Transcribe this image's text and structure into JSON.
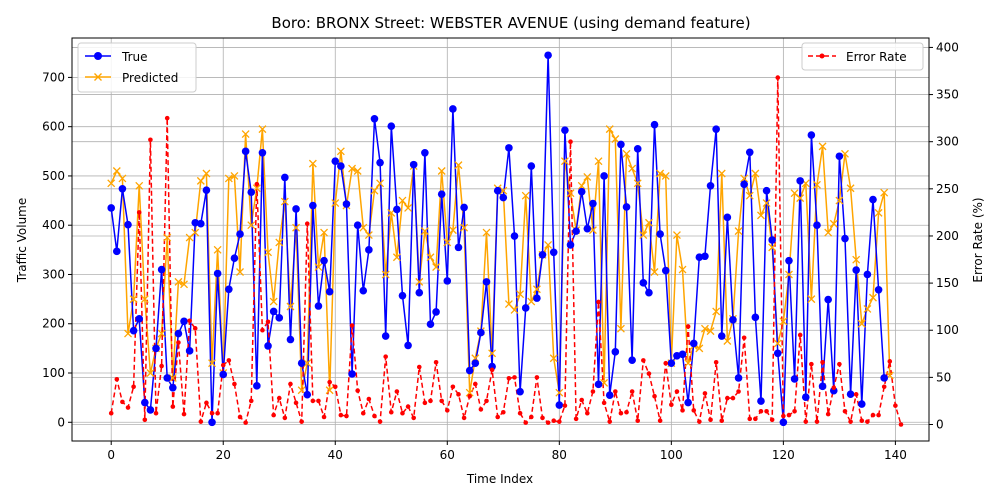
{
  "chart_data": {
    "type": "line",
    "title": "Boro: BRONX Street: WEBSTER AVENUE (using demand feature)",
    "xlabel": "Time Index",
    "ylabel": "Traffic Volume",
    "y2label": "Error Rate (%)",
    "xlim": [
      -7,
      146
    ],
    "ylim": [
      -38,
      780
    ],
    "y2lim": [
      -17.5,
      410
    ],
    "xticks": [
      0,
      20,
      40,
      60,
      80,
      100,
      120,
      140
    ],
    "yticks": [
      0,
      100,
      200,
      300,
      400,
      500,
      600,
      700
    ],
    "y2ticks": [
      0,
      50,
      100,
      150,
      200,
      250,
      300,
      350,
      400
    ],
    "grid": true,
    "legend_left": {
      "position": "top-left",
      "entries": [
        "True",
        "Predicted"
      ]
    },
    "legend_right": {
      "position": "top-right",
      "entries": [
        "Error Rate"
      ]
    },
    "colors": {
      "true": "#0000ff",
      "predicted": "#ffa500",
      "error": "#ff0000"
    },
    "series": [
      {
        "name": "True",
        "axis": "left",
        "marker": "circle",
        "line": "solid",
        "values": [
          435,
          347,
          474,
          401,
          186,
          210,
          40,
          25,
          150,
          310,
          90,
          70,
          180,
          205,
          145,
          405,
          403,
          471,
          0,
          302,
          97,
          270,
          333,
          382,
          550,
          467,
          74,
          547,
          155,
          225,
          212,
          497,
          168,
          433,
          120,
          56,
          440,
          236,
          328,
          265,
          530,
          520,
          443,
          98,
          400,
          267,
          350,
          616,
          527,
          175,
          601,
          432,
          257,
          156,
          523,
          263,
          547,
          199,
          224,
          463,
          287,
          636,
          355,
          436,
          105,
          120,
          182,
          285,
          113,
          470,
          456,
          557,
          378,
          62,
          232,
          520,
          252,
          340,
          745,
          345,
          35,
          593,
          360,
          388,
          468,
          393,
          444,
          77,
          500,
          55,
          143,
          564,
          437,
          126,
          555,
          283,
          263,
          604,
          382,
          308,
          120,
          135,
          138,
          40,
          160,
          335,
          337,
          480,
          595,
          175,
          416,
          208,
          90,
          483,
          548,
          213,
          43,
          470,
          370,
          140,
          0,
          328,
          88,
          490,
          51,
          583,
          400,
          73,
          249,
          64,
          540,
          373,
          57,
          309,
          37,
          300,
          452,
          269,
          90
        ]
      },
      {
        "name": "Predicted",
        "axis": "left",
        "marker": "x",
        "line": "solid",
        "values": [
          485,
          510,
          495,
          180,
          250,
          480,
          250,
          100,
          150,
          180,
          375,
          90,
          285,
          280,
          375,
          385,
          490,
          505,
          120,
          350,
          100,
          495,
          500,
          305,
          585,
          400,
          475,
          595,
          345,
          245,
          365,
          448,
          235,
          395,
          65,
          120,
          525,
          315,
          385,
          65,
          445,
          550,
          440,
          515,
          510,
          395,
          380,
          470,
          485,
          300,
          425,
          335,
          450,
          435,
          520,
          285,
          388,
          335,
          315,
          510,
          365,
          390,
          522,
          395,
          60,
          130,
          185,
          385,
          140,
          475,
          470,
          240,
          228,
          260,
          460,
          245,
          270,
          340,
          360,
          130,
          60,
          530,
          465,
          390,
          480,
          498,
          390,
          530,
          80,
          595,
          575,
          190,
          545,
          515,
          485,
          380,
          405,
          305,
          505,
          500,
          120,
          380,
          310,
          120,
          155,
          150,
          190,
          185,
          225,
          505,
          165,
          210,
          388,
          495,
          460,
          505,
          420,
          445,
          355,
          160,
          205,
          300,
          465,
          455,
          485,
          250,
          482,
          560,
          385,
          403,
          450,
          545,
          475,
          330,
          200,
          230,
          253,
          425,
          466,
          95
        ]
      },
      {
        "name": "Error Rate",
        "axis": "right",
        "marker": "dot",
        "line": "dashed",
        "values": [
          12,
          48,
          24,
          18,
          40,
          225,
          5,
          302,
          12,
          62,
          325,
          19,
          87,
          11,
          110,
          102,
          3,
          23,
          12,
          12,
          63,
          68,
          43,
          8,
          2,
          25,
          255,
          100,
          109,
          10,
          28,
          7,
          43,
          23,
          3,
          213,
          25,
          25,
          8,
          45,
          40,
          10,
          9,
          105,
          36,
          12,
          27,
          9,
          3,
          72,
          13,
          35,
          12,
          19,
          7,
          61,
          23,
          25,
          66,
          25,
          15,
          40,
          32,
          7,
          30,
          43,
          16,
          25,
          58,
          8,
          13,
          49,
          50,
          12,
          2,
          8,
          50,
          7,
          2,
          4,
          3,
          20,
          300,
          6,
          26,
          12,
          35,
          130,
          23,
          3,
          35,
          12,
          13,
          35,
          4,
          68,
          54,
          30,
          4,
          65,
          21,
          35,
          15,
          104,
          15,
          3,
          33,
          5,
          66,
          4,
          28,
          28,
          35,
          92,
          6,
          6,
          14,
          14,
          5,
          368,
          9,
          10,
          14,
          95,
          3,
          64,
          3,
          66,
          11,
          39,
          64,
          14,
          3,
          32,
          4,
          3,
          10,
          10,
          40,
          67,
          20,
          0
        ]
      }
    ]
  }
}
